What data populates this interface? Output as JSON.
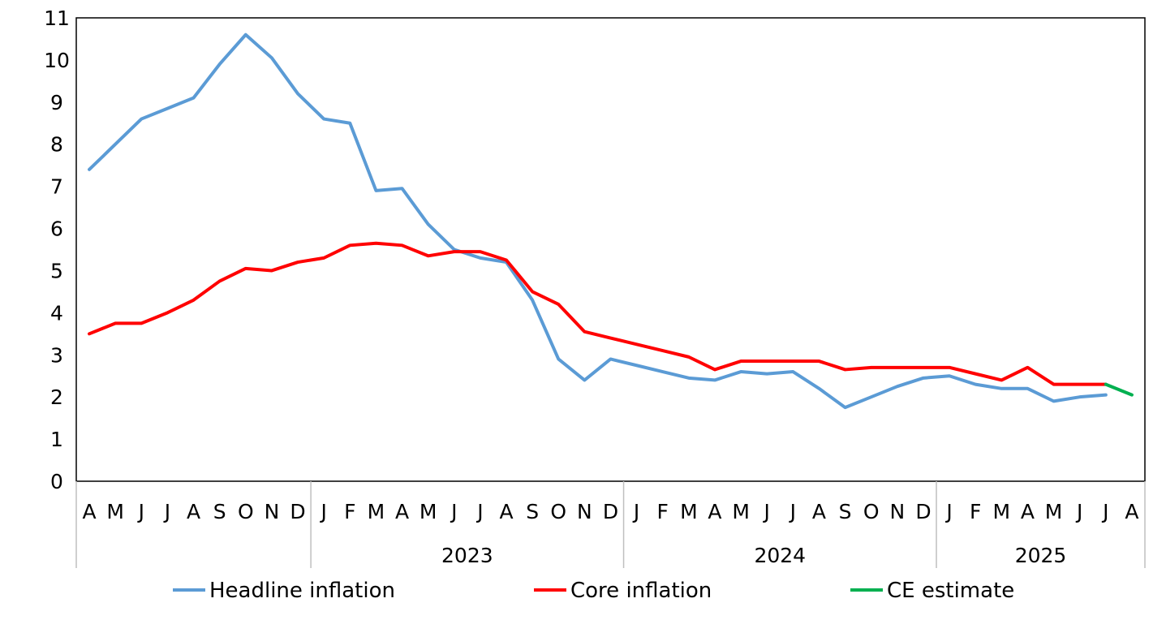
{
  "chart_data": {
    "type": "line",
    "title": "",
    "xlabel": "",
    "ylabel": "",
    "ylim": [
      0,
      11
    ],
    "yticks": [
      0,
      1,
      2,
      3,
      4,
      5,
      6,
      7,
      8,
      9,
      10,
      11
    ],
    "grid": false,
    "legend_position": "bottom",
    "months": [
      "A",
      "M",
      "J",
      "J",
      "A",
      "S",
      "O",
      "N",
      "D",
      "J",
      "F",
      "M",
      "A",
      "M",
      "J",
      "J",
      "A",
      "S",
      "O",
      "N",
      "D",
      "J",
      "F",
      "M",
      "A",
      "M",
      "J",
      "J",
      "A",
      "S",
      "O",
      "N",
      "D",
      "J",
      "F",
      "M",
      "A",
      "M",
      "J",
      "J",
      "A"
    ],
    "years": [
      {
        "label": "2023",
        "start_index": 9,
        "end_index": 20
      },
      {
        "label": "2024",
        "start_index": 21,
        "end_index": 32
      },
      {
        "label": "2025",
        "start_index": 33,
        "end_index": 40
      }
    ],
    "series": [
      {
        "name": "Headline inflation",
        "color": "#5B9BD5",
        "start_index": 0,
        "values": [
          7.4,
          8.0,
          8.6,
          8.85,
          9.1,
          9.9,
          10.6,
          10.05,
          9.2,
          8.6,
          8.5,
          6.9,
          6.95,
          6.1,
          5.5,
          5.3,
          5.2,
          4.3,
          2.9,
          2.4,
          2.9,
          2.75,
          2.6,
          2.45,
          2.4,
          2.6,
          2.55,
          2.6,
          2.2,
          1.75,
          2.0,
          2.25,
          2.45,
          2.5,
          2.3,
          2.2,
          2.2,
          1.9,
          2.0,
          2.05
        ]
      },
      {
        "name": "Core inflation",
        "color": "#FF0000",
        "start_index": 0,
        "values": [
          3.5,
          3.75,
          3.75,
          4.0,
          4.3,
          4.75,
          5.05,
          5.0,
          5.2,
          5.3,
          5.6,
          5.65,
          5.6,
          5.35,
          5.45,
          5.45,
          5.25,
          4.5,
          4.2,
          3.55,
          3.4,
          3.25,
          3.1,
          2.95,
          2.65,
          2.85,
          2.85,
          2.85,
          2.85,
          2.65,
          2.7,
          2.7,
          2.7,
          2.7,
          2.55,
          2.4,
          2.7,
          2.3,
          2.3,
          2.3
        ]
      },
      {
        "name": "CE estimate",
        "color": "#00B050",
        "start_index": 39,
        "values": [
          2.3,
          2.05
        ]
      }
    ]
  }
}
